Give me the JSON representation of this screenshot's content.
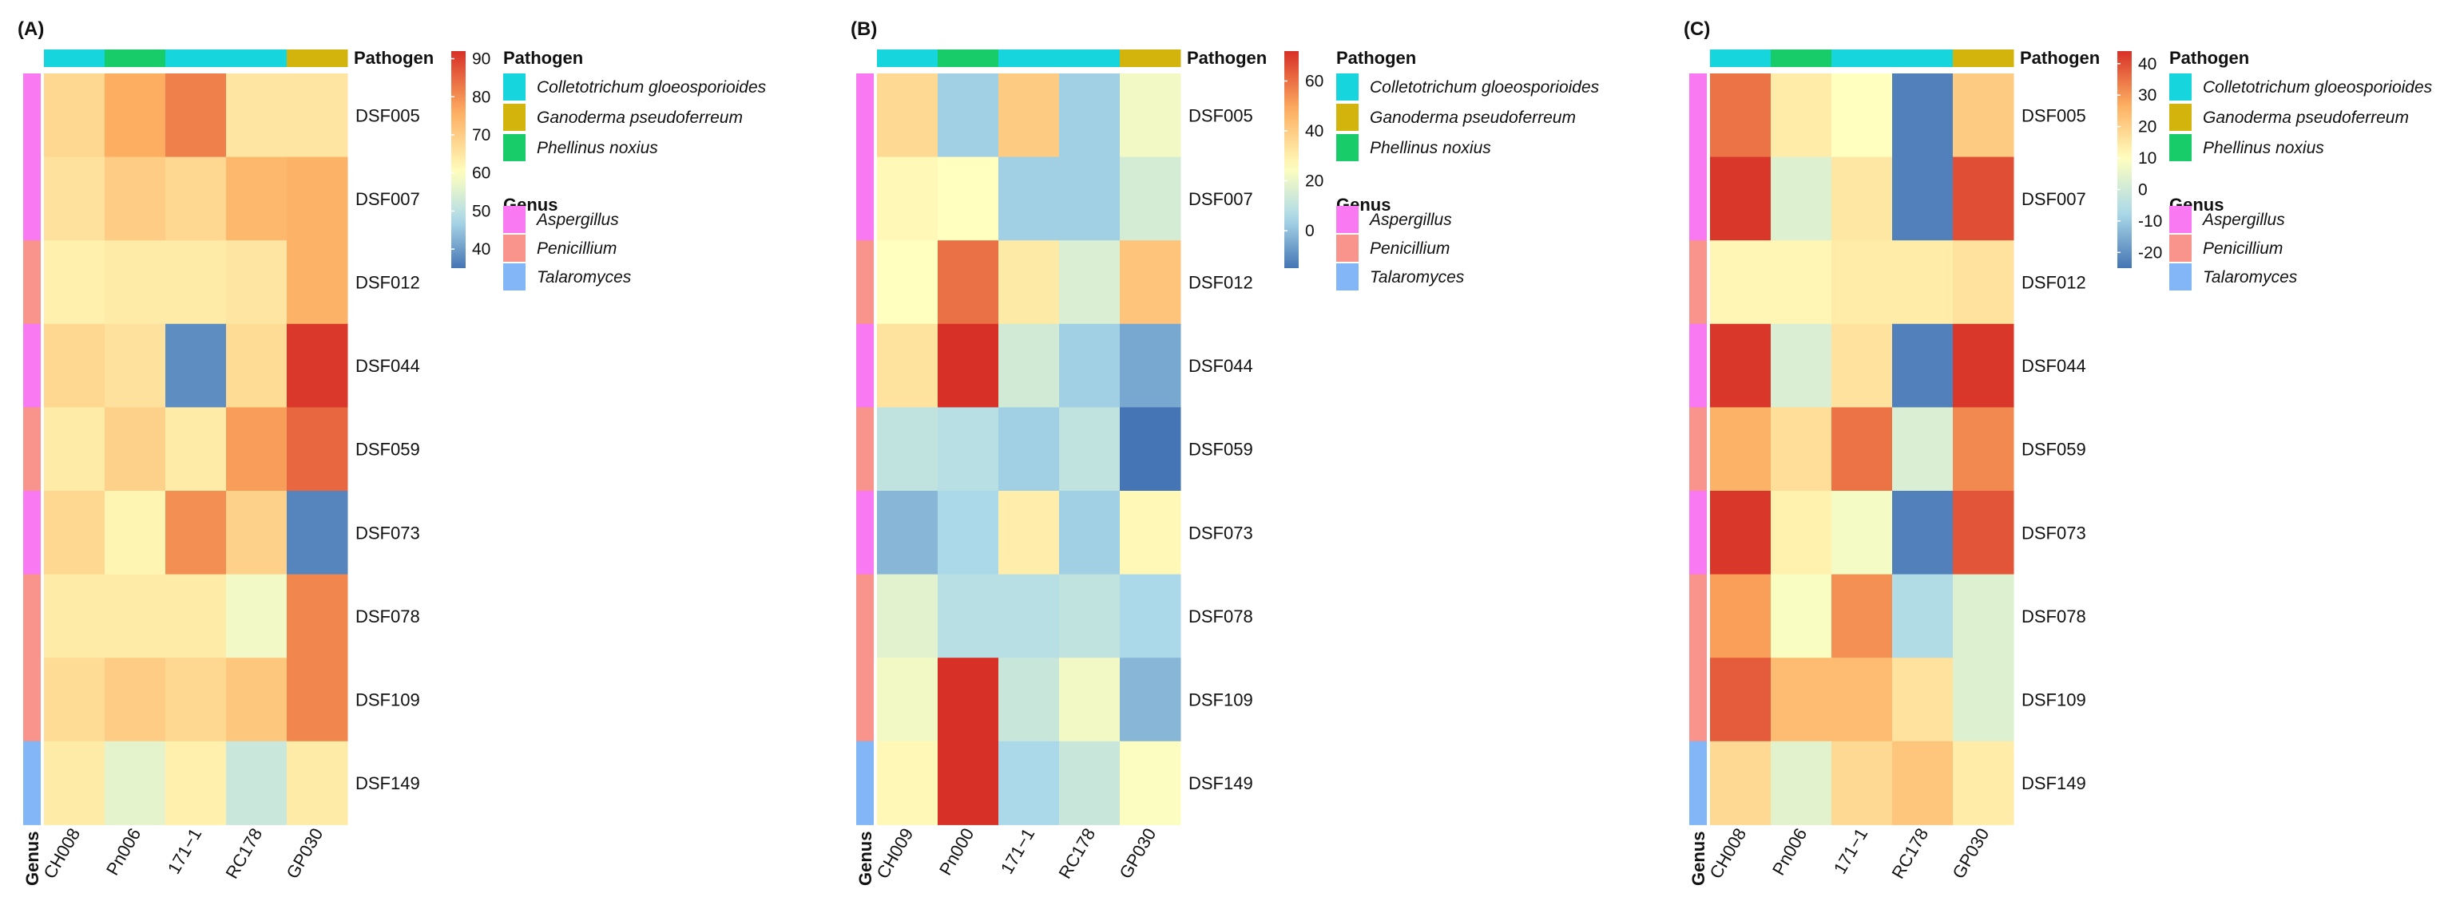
{
  "chart_data": [
    {
      "type": "heatmap",
      "panel": "(A)",
      "rows": [
        "DSF005",
        "DSF007",
        "DSF012",
        "DSF044",
        "DSF059",
        "DSF073",
        "DSF078",
        "DSF109",
        "DSF149"
      ],
      "columns": [
        "CH008",
        "Pn006",
        "171−1",
        "RC178",
        "GP030"
      ],
      "values": [
        [
          68,
          76,
          82,
          65,
          65
        ],
        [
          66,
          70,
          68,
          74,
          75
        ],
        [
          63,
          64,
          64,
          65,
          75
        ],
        [
          68,
          66,
          38,
          67,
          91
        ],
        [
          64,
          69,
          64,
          78,
          85
        ],
        [
          68,
          62,
          80,
          69,
          37
        ],
        [
          64,
          64,
          64,
          58,
          81
        ],
        [
          67,
          70,
          68,
          71,
          81
        ],
        [
          64,
          56,
          63,
          52,
          64
        ]
      ],
      "scale": {
        "min": 35,
        "mid": 60,
        "max": 92,
        "ticks": [
          90,
          80,
          70,
          60,
          50,
          40
        ]
      },
      "row_genus": [
        "Aspergillus",
        "Aspergillus",
        "Penicillium",
        "Aspergillus",
        "Penicillium",
        "Aspergillus",
        "Penicillium",
        "Penicillium",
        "Talaromyces"
      ],
      "col_pathogen": [
        "Colletotrichum gloeosporioides",
        "Phellinus noxius",
        "Colletotrichum gloeosporioides",
        "Colletotrichum gloeosporioides",
        "Ganoderma pseudoferreum"
      ]
    },
    {
      "type": "heatmap",
      "panel": "(B)",
      "rows": [
        "DSF005",
        "DSF007",
        "DSF012",
        "DSF044",
        "DSF059",
        "DSF073",
        "DSF078",
        "DSF109",
        "DSF149"
      ],
      "columns": [
        "CH009",
        "Pn000",
        "171−1",
        "RC178",
        "GP030"
      ],
      "values": [
        [
          36,
          3,
          40,
          3,
          22
        ],
        [
          27,
          25,
          3,
          3,
          15
        ],
        [
          25,
          60,
          31,
          16,
          42
        ],
        [
          33,
          72,
          14,
          3,
          -5
        ],
        [
          10,
          8,
          3,
          10,
          -15
        ],
        [
          -2,
          5,
          30,
          3,
          27
        ],
        [
          18,
          8,
          8,
          10,
          5
        ],
        [
          22,
          72,
          12,
          22,
          -2
        ],
        [
          27,
          72,
          5,
          12,
          24
        ]
      ],
      "scale": {
        "min": -15,
        "mid": 25,
        "max": 72,
        "ticks": [
          60,
          40,
          20,
          0
        ]
      },
      "row_genus": [
        "Aspergillus",
        "Aspergillus",
        "Penicillium",
        "Aspergillus",
        "Penicillium",
        "Aspergillus",
        "Penicillium",
        "Penicillium",
        "Talaromyces"
      ],
      "col_pathogen": [
        "Colletotrichum gloeosporioides",
        "Phellinus noxius",
        "Colletotrichum gloeosporioides",
        "Colletotrichum gloeosporioides",
        "Ganoderma pseudoferreum"
      ]
    },
    {
      "type": "heatmap",
      "panel": "(C)",
      "rows": [
        "DSF005",
        "DSF007",
        "DSF012",
        "DSF044",
        "DSF059",
        "DSF073",
        "DSF078",
        "DSF109",
        "DSF149"
      ],
      "columns": [
        "CH008",
        "Pn006",
        "171−1",
        "RC178",
        "GP030"
      ],
      "values": [
        [
          35,
          14,
          10,
          -23,
          21
        ],
        [
          43,
          3,
          15,
          -23,
          40
        ],
        [
          12,
          12,
          14,
          14,
          16
        ],
        [
          43,
          2,
          16,
          -23,
          43
        ],
        [
          26,
          17,
          35,
          2,
          32
        ],
        [
          43,
          13,
          8,
          -23,
          39
        ],
        [
          29,
          9,
          31,
          -6,
          3
        ],
        [
          38,
          24,
          24,
          16,
          3
        ],
        [
          18,
          4,
          18,
          22,
          14
        ]
      ],
      "scale": {
        "min": -25,
        "mid": 10,
        "max": 44,
        "ticks": [
          40,
          30,
          20,
          10,
          0,
          -10,
          -20
        ]
      },
      "row_genus": [
        "Aspergillus",
        "Aspergillus",
        "Penicillium",
        "Aspergillus",
        "Penicillium",
        "Aspergillus",
        "Penicillium",
        "Penicillium",
        "Talaromyces"
      ],
      "col_pathogen": [
        "Colletotrichum gloeosporioides",
        "Phellinus noxius",
        "Colletotrichum gloeosporioides",
        "Colletotrichum gloeosporioides",
        "Ganoderma pseudoferreum"
      ]
    }
  ],
  "annotation": {
    "pathogen_label": "Pathogen",
    "genus_label": "Genus"
  },
  "legend": {
    "pathogen_title": "Pathogen",
    "pathogen_items": [
      "Colletotrichum gloeosporioides",
      "Ganoderma pseudoferreum",
      "Phellinus noxius"
    ],
    "genus_title": "Genus",
    "genus_items": [
      "Aspergillus",
      "Penicillium",
      "Talaromyces"
    ]
  },
  "colors": {
    "Colletotrichum gloeosporioides": "#16d5dc",
    "Ganoderma pseudoferreum": "#d2b40d",
    "Phellinus noxius": "#19cc6a",
    "Aspergillus": "#f879f2",
    "Penicillium": "#f8948b",
    "Talaromyces": "#83b6f6",
    "scale_low": "#4575b4",
    "scale_lowmid": "#abd9e9",
    "scale_mid": "#ffffbf",
    "scale_highmid": "#fdae61",
    "scale_high": "#d73027"
  }
}
